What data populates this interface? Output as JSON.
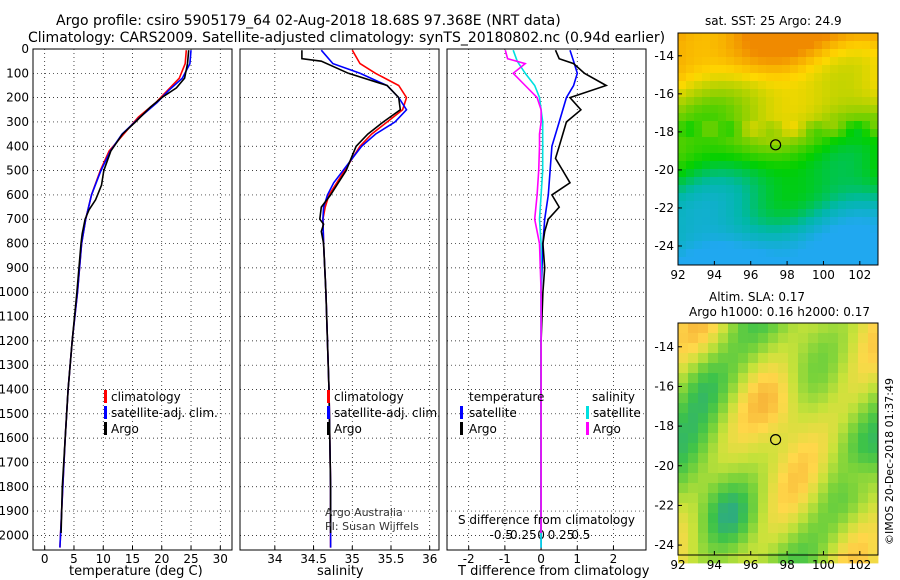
{
  "title": {
    "line1": "Argo profile: csiro 5905179_64 02-Aug-2018 18.68S 97.368E (NRT data)",
    "line2": "Climatology: CARS2009. Satellite-adjusted climatology: synTS_20180802.nc (0.94d earlier)"
  },
  "credit": {
    "org": "Argo Australia",
    "pi": "PI: Susan Wijffels"
  },
  "stamp": "©IMOS 20-Dec-2018 01:37:49",
  "colors": {
    "climatology": "#ff0000",
    "satellite": "#0000ff",
    "argo": "#000000",
    "s_satellite": "#00e0e0",
    "s_argo": "#ff00ff"
  },
  "chart_data": [
    {
      "type": "line",
      "id": "temperature",
      "xlabel": "temperature (deg C)",
      "ylabel": "",
      "xlim": [
        -2,
        32
      ],
      "ylim": [
        2060,
        0
      ],
      "xticks": [
        0,
        5,
        10,
        15,
        20,
        25,
        30
      ],
      "yticks": [
        0,
        100,
        200,
        300,
        400,
        500,
        600,
        700,
        800,
        900,
        1000,
        1100,
        1200,
        1300,
        1400,
        1500,
        1600,
        1700,
        1800,
        1900,
        2000
      ],
      "legend": [
        "climatology",
        "satellite-adj. clim.",
        "Argo"
      ],
      "series": [
        {
          "name": "climatology",
          "y": [
            5,
            60,
            120,
            170,
            220,
            280,
            350,
            420,
            500,
            600,
            700,
            800,
            1000,
            1200,
            1400,
            1600,
            1800,
            2000,
            2050
          ],
          "values": [
            24.2,
            24.0,
            23.0,
            21.0,
            19.0,
            16.0,
            13.5,
            11.0,
            9.5,
            8.0,
            7.0,
            6.3,
            5.6,
            4.7,
            4.0,
            3.5,
            3.1,
            2.7,
            2.6
          ]
        },
        {
          "name": "satellite-adj. clim.",
          "y": [
            5,
            60,
            120,
            170,
            220,
            280,
            350,
            420,
            500,
            600,
            700,
            800,
            1000,
            1200,
            1400,
            1600,
            1800,
            2000,
            2050
          ],
          "values": [
            25.0,
            24.8,
            23.5,
            21.2,
            19.2,
            16.3,
            13.2,
            11.2,
            9.6,
            8.0,
            7.0,
            6.3,
            5.6,
            4.7,
            4.0,
            3.5,
            3.1,
            2.7,
            2.6
          ]
        },
        {
          "name": "Argo",
          "y": [
            5,
            60,
            120,
            160,
            200,
            240,
            300,
            350,
            420,
            500,
            560,
            620,
            660,
            700,
            760,
            800,
            1000,
            1200,
            1400,
            1600,
            1800,
            1990
          ],
          "values": [
            24.6,
            24.4,
            23.9,
            22.5,
            20.0,
            18.0,
            15.5,
            13.3,
            11.3,
            10.1,
            9.7,
            8.7,
            7.6,
            6.9,
            6.4,
            6.2,
            5.5,
            4.7,
            4.0,
            3.5,
            3.0,
            2.8
          ]
        }
      ]
    },
    {
      "type": "line",
      "id": "salinity",
      "xlabel": "salinity",
      "ylabel": "",
      "xlim": [
        33.55,
        36.12
      ],
      "ylim": [
        2060,
        0
      ],
      "xticks": [
        34,
        34.5,
        35,
        35.5,
        36
      ],
      "legend": [
        "climatology",
        "satellite-adj. clim.",
        "Argo"
      ],
      "series": [
        {
          "name": "climatology",
          "y": [
            5,
            60,
            100,
            150,
            200,
            250,
            300,
            350,
            400,
            450,
            500,
            550,
            600,
            650,
            700,
            800,
            1000,
            1400,
            1800,
            2050
          ],
          "values": [
            35.0,
            35.1,
            35.3,
            35.6,
            35.7,
            35.65,
            35.45,
            35.25,
            35.1,
            35.0,
            34.9,
            34.8,
            34.7,
            34.65,
            34.62,
            34.63,
            34.66,
            34.7,
            34.72,
            34.72
          ]
        },
        {
          "name": "satellite-adj. clim.",
          "y": [
            5,
            60,
            100,
            150,
            200,
            250,
            300,
            350,
            400,
            450,
            500,
            550,
            600,
            650,
            700,
            800,
            1000,
            1400,
            1800,
            2050
          ],
          "values": [
            34.6,
            34.75,
            35.1,
            35.45,
            35.6,
            35.7,
            35.55,
            35.3,
            35.12,
            35.0,
            34.88,
            34.76,
            34.68,
            34.63,
            34.62,
            34.63,
            34.66,
            34.7,
            34.72,
            34.72
          ]
        },
        {
          "name": "Argo",
          "y": [
            5,
            40,
            50,
            100,
            150,
            200,
            250,
            300,
            350,
            400,
            500,
            550,
            600,
            650,
            700,
            720,
            750,
            800,
            1000,
            1400,
            1800,
            1990
          ],
          "values": [
            34.35,
            34.35,
            34.6,
            34.95,
            35.45,
            35.6,
            35.62,
            35.4,
            35.2,
            35.05,
            34.92,
            34.82,
            34.72,
            34.6,
            34.58,
            34.63,
            34.6,
            34.63,
            34.66,
            34.7,
            34.72,
            34.72
          ]
        }
      ]
    },
    {
      "type": "line",
      "id": "difference",
      "xlabel": "T difference from climatology",
      "xlabel2": "S difference from climatology",
      "xlim": [
        -2.6,
        2.9
      ],
      "ylim": [
        2060,
        0
      ],
      "xticks": [
        -2,
        -1,
        0,
        1,
        2
      ],
      "xticks2": [
        -0.5,
        -0.25,
        0,
        0.25,
        0.5
      ],
      "xticks2_labels": [
        "-0.5",
        "-0.25",
        "0",
        "0.25",
        "0.5"
      ],
      "legend_t": {
        "title": "temperature",
        "items": [
          "satellite",
          "Argo"
        ]
      },
      "legend_s": {
        "title": "salinity",
        "items": [
          "satellite",
          "Argo"
        ]
      },
      "series": [
        {
          "name": "T satellite",
          "y": [
            5,
            50,
            100,
            150,
            200,
            300,
            400,
            500,
            600,
            700,
            800,
            1000,
            1200,
            1500,
            2000,
            2050
          ],
          "values": [
            0.8,
            0.9,
            1.0,
            0.9,
            0.7,
            0.5,
            0.3,
            0.25,
            0.2,
            0.1,
            0.05,
            0,
            0,
            0,
            0,
            0
          ]
        },
        {
          "name": "T Argo",
          "y": [
            5,
            40,
            60,
            100,
            150,
            200,
            250,
            300,
            350,
            400,
            450,
            500,
            550,
            600,
            650,
            700,
            750,
            800,
            900,
            1000,
            1200,
            1500,
            1800,
            1990
          ],
          "values": [
            0.4,
            0.5,
            0.9,
            1.2,
            1.8,
            0.8,
            1.1,
            0.7,
            0.6,
            0.5,
            0.4,
            0.6,
            0.8,
            0.3,
            0.5,
            0.2,
            0.1,
            0.05,
            0.1,
            0.05,
            0.0,
            0.0,
            0.0,
            0.0
          ]
        },
        {
          "name": "S satellite",
          "y": [
            5,
            50,
            100,
            150,
            200,
            250,
            300,
            400,
            500,
            600,
            700,
            800,
            1000,
            1500,
            2000,
            2050
          ],
          "values": [
            -0.35,
            -0.3,
            -0.2,
            -0.08,
            -0.02,
            0.0,
            0.02,
            0.02,
            0.02,
            0.0,
            -0.02,
            0.0,
            0.0,
            0.0,
            0.0,
            0.0
          ]
        },
        {
          "name": "S Argo",
          "y": [
            5,
            40,
            60,
            100,
            150,
            200,
            250,
            300,
            350,
            400,
            500,
            600,
            700,
            800,
            1000,
            1400,
            1800,
            1990
          ],
          "values": [
            -0.45,
            -0.42,
            -0.2,
            -0.35,
            -0.2,
            -0.05,
            0.0,
            0.0,
            -0.02,
            -0.02,
            -0.03,
            -0.05,
            -0.08,
            -0.02,
            0.0,
            0.0,
            0.0,
            0.0
          ]
        }
      ]
    },
    {
      "type": "heatmap",
      "id": "sst-map",
      "title": "sat. SST: 25 Argo: 24.9",
      "xlim": [
        92,
        103
      ],
      "ylim": [
        -25,
        -12.8
      ],
      "xticks": [
        92,
        94,
        96,
        98,
        100,
        102
      ],
      "yticks": [
        -14,
        -16,
        -18,
        -20,
        -22,
        -24
      ],
      "float_position": {
        "lon": 97.368,
        "lat": -18.68
      },
      "colorscale": [
        "#f08a00",
        "#ffd800",
        "#8fd000",
        "#00d000",
        "#00b8a8",
        "#20a8f0"
      ]
    },
    {
      "type": "heatmap",
      "id": "sla-map",
      "title": "Altim. SLA: 0.17",
      "title2": "Argo h1000: 0.16 h2000: 0.17",
      "xlim": [
        92,
        103
      ],
      "ylim": [
        -24.5,
        -12.8
      ],
      "xticks": [
        92,
        94,
        96,
        98,
        100,
        102
      ],
      "yticks": [
        -14,
        -16,
        -18,
        -20,
        -22,
        -24
      ],
      "float_position": {
        "lon": 97.368,
        "lat": -18.68
      },
      "colorscale": [
        "#2aa88a",
        "#3cc24a",
        "#7bd33a",
        "#c8e23a",
        "#ffd84a",
        "#f5a832"
      ]
    }
  ]
}
